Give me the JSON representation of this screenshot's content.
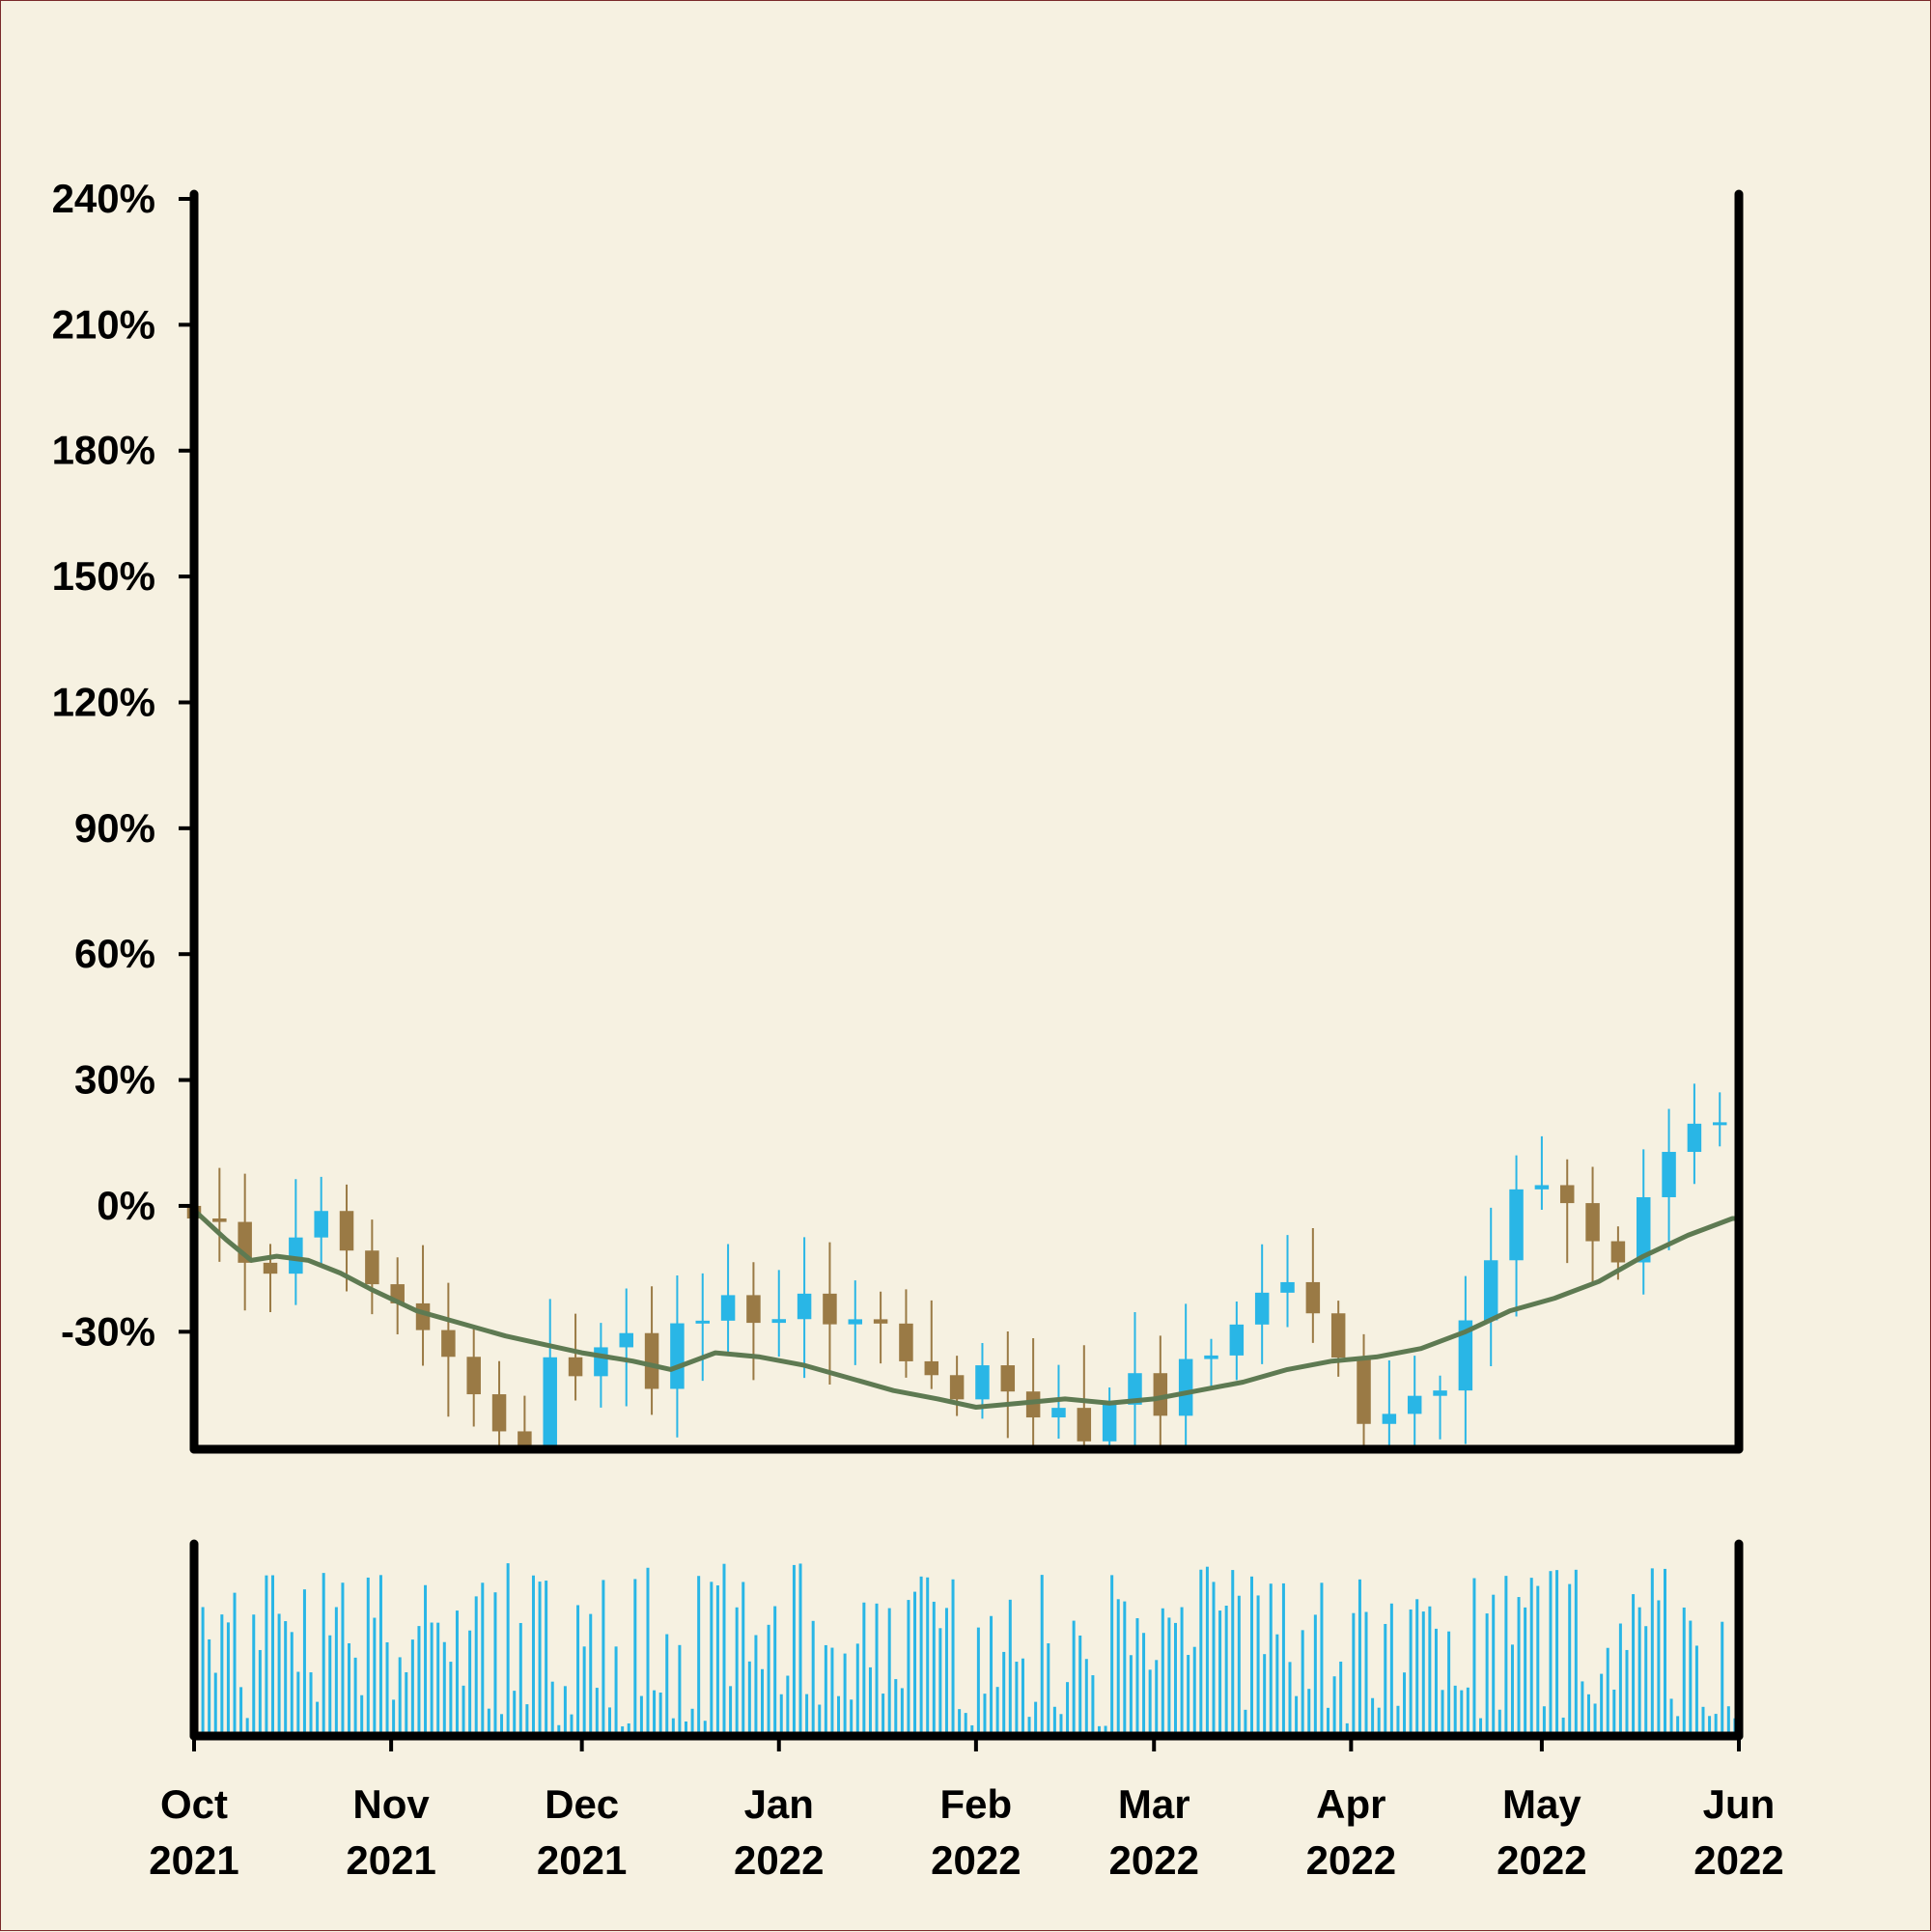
{
  "chart_data": {
    "type": "candlestick",
    "title": "",
    "xlabel": "",
    "ylabel": "",
    "x_range": [
      "2021-10-01",
      "2022-06-01"
    ],
    "y_range": [
      -58,
      240
    ],
    "y_ticks": [
      "240%",
      "210%",
      "180%",
      "150%",
      "120%",
      "90%",
      "60%",
      "30%",
      "0%",
      "-30%"
    ],
    "y_tick_values": [
      240,
      210,
      180,
      150,
      120,
      90,
      60,
      30,
      0,
      -30
    ],
    "x_ticks": [
      {
        "date": "2021-10-01",
        "month": "Oct",
        "year": "2021"
      },
      {
        "date": "2021-11-01",
        "month": "Nov",
        "year": "2021"
      },
      {
        "date": "2021-12-01",
        "month": "Dec",
        "year": "2021"
      },
      {
        "date": "2022-01-01",
        "month": "Jan",
        "year": "2022"
      },
      {
        "date": "2022-02-01",
        "month": "Feb",
        "year": "2022"
      },
      {
        "date": "2022-03-01",
        "month": "Mar",
        "year": "2022"
      },
      {
        "date": "2022-04-01",
        "month": "Apr",
        "year": "2022"
      },
      {
        "date": "2022-05-01",
        "month": "May",
        "year": "2022"
      },
      {
        "date": "2022-06-01",
        "month": "Jun",
        "year": "2022"
      }
    ],
    "grid": false,
    "legend": "none",
    "colors": {
      "up": "#29b6e6",
      "down": "#9a7a45",
      "moving_average": "#5e7a52",
      "volume": "#29b6e6",
      "axes": "#000000"
    },
    "price_path": [
      [
        "2021-10-01",
        0
      ],
      [
        "2021-10-07",
        -8
      ],
      [
        "2021-10-12",
        -20
      ],
      [
        "2021-10-17",
        -10
      ],
      [
        "2021-10-21",
        0
      ],
      [
        "2021-10-26",
        -10
      ],
      [
        "2021-10-31",
        -20
      ],
      [
        "2021-11-06",
        -28
      ],
      [
        "2021-11-12",
        -40
      ],
      [
        "2021-11-17",
        -50
      ],
      [
        "2021-11-22",
        -56
      ],
      [
        "2021-11-27",
        -34
      ],
      [
        "2021-12-02",
        -40
      ],
      [
        "2021-12-07",
        -30
      ],
      [
        "2021-12-12",
        -44
      ],
      [
        "2021-12-17",
        -26
      ],
      [
        "2021-12-24",
        -24
      ],
      [
        "2021-12-31",
        -28
      ],
      [
        "2022-01-04",
        -20
      ],
      [
        "2022-01-11",
        -32
      ],
      [
        "2022-01-16",
        -22
      ],
      [
        "2022-01-21",
        -38
      ],
      [
        "2022-01-28",
        -44
      ],
      [
        "2022-02-03",
        -40
      ],
      [
        "2022-02-08",
        -52
      ],
      [
        "2022-02-13",
        -44
      ],
      [
        "2022-02-18",
        -56
      ],
      [
        "2022-02-25",
        -40
      ],
      [
        "2022-03-02",
        -50
      ],
      [
        "2022-03-07",
        -36
      ],
      [
        "2022-03-12",
        -34
      ],
      [
        "2022-03-17",
        -24
      ],
      [
        "2022-03-21",
        -14
      ],
      [
        "2022-03-26",
        -28
      ],
      [
        "2022-04-01",
        -44
      ],
      [
        "2022-04-05",
        -56
      ],
      [
        "2022-04-08",
        -42
      ],
      [
        "2022-04-12",
        -50
      ],
      [
        "2022-04-17",
        -36
      ],
      [
        "2022-04-22",
        -16
      ],
      [
        "2022-04-27",
        2
      ],
      [
        "2022-05-02",
        8
      ],
      [
        "2022-05-07",
        0
      ],
      [
        "2022-05-12",
        -14
      ],
      [
        "2022-05-17",
        2
      ],
      [
        "2022-05-22",
        14
      ],
      [
        "2022-05-27",
        24
      ],
      [
        "2022-06-01",
        16
      ]
    ],
    "moving_average": [
      [
        "2021-10-01",
        -1
      ],
      [
        "2021-10-06",
        -8
      ],
      [
        "2021-10-10",
        -13
      ],
      [
        "2021-10-14",
        -12
      ],
      [
        "2021-10-19",
        -13
      ],
      [
        "2021-10-24",
        -16
      ],
      [
        "2021-10-29",
        -20
      ],
      [
        "2021-11-05",
        -25
      ],
      [
        "2021-11-12",
        -28
      ],
      [
        "2021-11-19",
        -31
      ],
      [
        "2021-11-25",
        -33
      ],
      [
        "2021-12-01",
        -35
      ],
      [
        "2021-12-09",
        -37
      ],
      [
        "2021-12-15",
        -39
      ],
      [
        "2021-12-22",
        -35
      ],
      [
        "2021-12-29",
        -36
      ],
      [
        "2022-01-05",
        -38
      ],
      [
        "2022-01-12",
        -41
      ],
      [
        "2022-01-19",
        -44
      ],
      [
        "2022-01-26",
        -46
      ],
      [
        "2022-02-01",
        -48
      ],
      [
        "2022-02-08",
        -47
      ],
      [
        "2022-02-15",
        -46
      ],
      [
        "2022-02-22",
        -47
      ],
      [
        "2022-03-01",
        -46
      ],
      [
        "2022-03-08",
        -44
      ],
      [
        "2022-03-15",
        -42
      ],
      [
        "2022-03-22",
        -39
      ],
      [
        "2022-03-29",
        -37
      ],
      [
        "2022-04-05",
        -36
      ],
      [
        "2022-04-12",
        -34
      ],
      [
        "2022-04-19",
        -30
      ],
      [
        "2022-04-26",
        -25
      ],
      [
        "2022-05-03",
        -22
      ],
      [
        "2022-05-10",
        -18
      ],
      [
        "2022-05-17",
        -12
      ],
      [
        "2022-05-24",
        -7
      ],
      [
        "2022-05-31",
        -3
      ],
      [
        "2022-06-01",
        -3
      ]
    ],
    "volume_range": [
      0,
      100
    ]
  }
}
